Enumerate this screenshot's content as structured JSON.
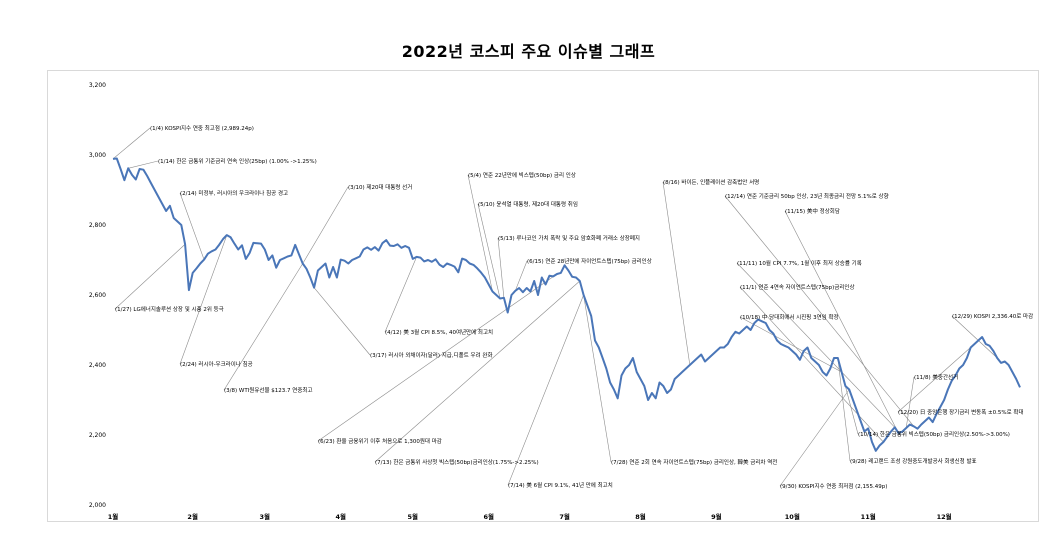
{
  "chart_data": {
    "type": "line",
    "title": "2022년  코스피 주요 이슈별 그래프",
    "xlabel": "",
    "ylabel": "",
    "ylim": [
      2000,
      3200
    ],
    "y_ticks": [
      "2,000",
      "2,200",
      "2,400",
      "2,600",
      "2,800",
      "3,000",
      "3,200"
    ],
    "x_ticks": [
      "1월",
      "2월",
      "3월",
      "4월",
      "5월",
      "6월",
      "7월",
      "8월",
      "9월",
      "10월",
      "11월",
      "12월"
    ],
    "grid": false,
    "line_color": "#4a76b8",
    "series": [
      {
        "x": [
          0,
          0.05,
          0.1,
          0.15,
          0.2,
          0.25,
          0.3,
          0.35,
          0.4,
          0.45,
          0.5,
          0.55,
          0.6,
          0.65,
          0.7,
          0.75,
          0.8,
          0.85,
          0.9,
          0.95,
          1.0,
          1.05,
          1.1,
          1.15,
          1.2,
          1.25,
          1.3,
          1.35,
          1.4,
          1.45,
          1.5,
          1.55,
          1.6,
          1.65,
          1.7,
          1.75,
          1.8,
          1.85,
          1.9,
          1.95,
          2.0,
          2.05,
          2.1,
          2.15,
          2.2,
          2.25,
          2.3,
          2.35,
          2.4,
          2.45,
          2.5,
          2.55,
          2.6,
          2.65,
          2.7,
          2.75,
          2.8,
          2.85,
          2.9,
          2.95,
          3.0,
          3.05,
          3.1,
          3.15,
          3.2,
          3.25,
          3.3,
          3.35,
          3.4,
          3.45,
          3.5,
          3.55,
          3.6,
          3.65,
          3.7,
          3.75,
          3.8,
          3.85,
          3.9,
          3.95,
          4.0,
          4.05,
          4.1,
          4.15,
          4.2,
          4.25,
          4.3,
          4.35,
          4.4,
          4.45,
          4.5,
          4.55,
          4.6,
          4.65,
          4.7,
          4.75,
          4.8,
          4.85,
          4.9,
          4.95,
          5.0,
          5.05,
          5.1,
          5.15,
          5.2,
          5.25,
          5.3,
          5.35,
          5.4,
          5.45,
          5.5,
          5.55,
          5.6,
          5.65,
          5.7,
          5.75,
          5.8,
          5.85,
          5.9,
          5.95,
          6.0,
          6.05,
          6.1,
          6.15,
          6.2,
          6.25,
          6.3,
          6.35,
          6.4,
          6.45,
          6.5,
          6.55,
          6.6,
          6.65,
          6.7,
          6.75,
          6.8,
          6.85,
          6.9,
          6.95,
          7.0,
          7.05,
          7.1,
          7.15,
          7.2,
          7.25,
          7.3,
          7.35,
          7.4,
          7.45,
          7.5,
          7.55,
          7.6,
          7.65,
          7.7,
          7.75,
          7.8,
          7.85,
          7.9,
          7.95,
          8.0,
          8.05,
          8.1,
          8.15,
          8.2,
          8.25,
          8.3,
          8.35,
          8.4,
          8.45,
          8.5,
          8.55,
          8.6,
          8.65,
          8.7,
          8.75,
          8.8,
          8.85,
          8.9,
          8.95,
          9.0,
          9.05,
          9.1,
          9.15,
          9.2,
          9.25,
          9.3,
          9.35,
          9.4,
          9.45,
          9.5,
          9.55,
          9.6,
          9.65,
          9.7,
          9.75,
          9.8,
          9.85,
          9.9,
          9.95,
          10.0,
          10.05,
          10.1,
          10.15,
          10.2,
          10.25,
          10.3,
          10.35,
          10.4,
          10.45,
          10.5,
          10.55,
          10.6,
          10.65,
          10.7,
          10.75,
          10.8,
          10.85,
          10.9,
          10.95,
          11.0,
          11.05,
          11.1,
          11.15,
          11.2,
          11.25,
          11.3,
          11.35,
          11.4,
          11.45,
          11.5,
          11.55,
          11.6,
          11.65,
          11.7,
          11.75,
          11.8,
          11.85,
          11.9,
          11.95
        ],
        "values": [
          2989,
          2990,
          2960,
          2928,
          2962,
          2943,
          2930,
          2960,
          2958,
          2940,
          2920,
          2900,
          2880,
          2860,
          2840,
          2855,
          2820,
          2810,
          2800,
          2745,
          2614,
          2663,
          2676,
          2690,
          2701,
          2718,
          2725,
          2730,
          2744,
          2760,
          2771,
          2765,
          2747,
          2730,
          2742,
          2703,
          2720,
          2749,
          2748,
          2747,
          2730,
          2700,
          2713,
          2678,
          2700,
          2705,
          2710,
          2713,
          2743,
          2716,
          2690,
          2675,
          2650,
          2621,
          2670,
          2680,
          2690,
          2650,
          2680,
          2650,
          2701,
          2698,
          2690,
          2700,
          2705,
          2710,
          2730,
          2736,
          2729,
          2737,
          2727,
          2748,
          2757,
          2741,
          2740,
          2745,
          2735,
          2740,
          2735,
          2703,
          2709,
          2707,
          2696,
          2700,
          2695,
          2702,
          2687,
          2680,
          2690,
          2686,
          2681,
          2665,
          2704,
          2700,
          2690,
          2686,
          2676,
          2664,
          2650,
          2630,
          2610,
          2600,
          2590,
          2592,
          2550,
          2600,
          2612,
          2620,
          2608,
          2620,
          2610,
          2640,
          2600,
          2650,
          2630,
          2655,
          2653,
          2660,
          2663,
          2685,
          2670,
          2652,
          2650,
          2640,
          2600,
          2570,
          2540,
          2470,
          2450,
          2420,
          2390,
          2350,
          2330,
          2305,
          2370,
          2390,
          2400,
          2420,
          2380,
          2360,
          2340,
          2300,
          2320,
          2305,
          2350,
          2340,
          2320,
          2330,
          2360,
          2370,
          2380,
          2390,
          2400,
          2410,
          2420,
          2430,
          2410,
          2420,
          2430,
          2440,
          2450,
          2450,
          2460,
          2480,
          2495,
          2490,
          2500,
          2510,
          2500,
          2520,
          2530,
          2525,
          2520,
          2500,
          2490,
          2470,
          2460,
          2455,
          2450,
          2440,
          2430,
          2415,
          2440,
          2450,
          2420,
          2410,
          2400,
          2380,
          2370,
          2390,
          2420,
          2420,
          2380,
          2340,
          2330,
          2300,
          2270,
          2240,
          2210,
          2219,
          2180,
          2155,
          2170,
          2180,
          2195,
          2210,
          2222,
          2205,
          2210,
          2220,
          2230,
          2225,
          2218,
          2230,
          2240,
          2250,
          2237,
          2260,
          2280,
          2300,
          2330,
          2355,
          2370,
          2390,
          2400,
          2420,
          2450,
          2460,
          2470,
          2480,
          2460,
          2455,
          2440,
          2420,
          2406,
          2410,
          2400,
          2380,
          2360,
          2336
        ]
      }
    ],
    "annotations": [
      {
        "text": "(1/4) KOSPI지수 연중 최고점 (2,989.24p)"
      },
      {
        "text": "(1/14) 한은 금통위 기준금리 연속 인상(25bp) (1.00% ->1.25%)"
      },
      {
        "text": "(2/14) 미정부, 러시아의 우크라이나 침공 경고"
      },
      {
        "text": "(1/27) LG에너지솔루션 상장 및 시총 2위 등극"
      },
      {
        "text": "(2/24) 러시아-우크라이나 침공"
      },
      {
        "text": "(3/8) WTI원유선물 $123.7 연중최고"
      },
      {
        "text": "(3/10) 제20대 대통령 선거"
      },
      {
        "text": "(3/17) 러시아 외채이자(달러) 지급,디폴트 우려 완화"
      },
      {
        "text": "(4/12) 美 3월 CPI 8.5%, 40여년만에 최고치"
      },
      {
        "text": "(5/4) 연준 22년만에 빅스텝(50bp) 금리 인상"
      },
      {
        "text": "(5/10) 윤석열 대통령, 제20대 대통령 취임"
      },
      {
        "text": "(5/13) 루나코인 가치 폭락 및 주요 암호화폐 거래소 상장폐지"
      },
      {
        "text": "(6/15) 연준 28년만에 자이언트스텝(75bp) 금리인상"
      },
      {
        "text": "(6/23) 환율 금융위기 이후 처음으로 1,300원대 마감"
      },
      {
        "text": "(7/13) 한은 금통위 사상첫 빅스텝(50bp)금리인상(1.75%->2.25%)"
      },
      {
        "text": "(7/14) 美 6월  CPI 9.1%, 41년 만에 최고치"
      },
      {
        "text": "(7/28) 연준 2회 연속 자이언트스텝(75bp) 금리인상, 韓美 금리차 역전"
      },
      {
        "text": "(8/16) 바이든, 인플레이션 감축법안 서명"
      },
      {
        "text": "(9/30) KOSPI지수 연중 최저점 (2,155.49p)"
      },
      {
        "text": "(9/28) 레고랜드 조성 강원중도개발공사 회생신청 발표"
      },
      {
        "text": "(10/14) 한은 금통위 빅스텝(50bp) 금리인상(2.50%->3.00%)"
      },
      {
        "text": "(10/18) 中 당대회에서 시진핑 3연임 확정"
      },
      {
        "text": "(11/1) 연준 4연속 자이언트스텝(75bp)금리인상"
      },
      {
        "text": "(11/11) 10월 CPI 7.7%, 1월 이후 최저 상승률 기록"
      },
      {
        "text": "(11/15) 美中 정상회담"
      },
      {
        "text": "(12/14) 연준 기준금리 50bp 인상, 23년 최종금리 전망 5.1%로 상향"
      },
      {
        "text": "(11/8) 美중간선거"
      },
      {
        "text": "(12/29) KOSPI 2,336.40로 마감"
      },
      {
        "text": "(12/20) 日 중앙은행 장기금리 변동폭 ±0.5%로 확대"
      }
    ]
  }
}
